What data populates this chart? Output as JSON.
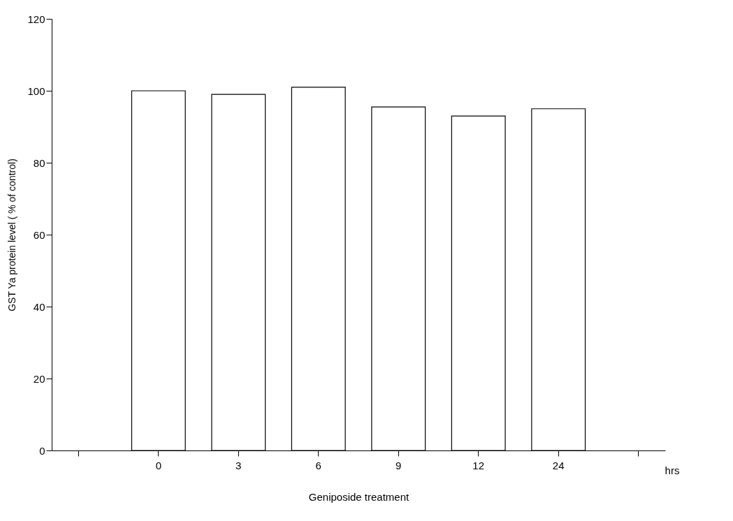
{
  "chart_data": {
    "type": "bar",
    "categories": [
      null,
      "0",
      "3",
      "6",
      "9",
      "12",
      "24",
      null
    ],
    "values": [
      null,
      100,
      99,
      101,
      95.5,
      93,
      95,
      null
    ],
    "color": "#ffffff",
    "xlabel": "Geniposide treatment",
    "ylabel": "GST Ya protein level ( % of control)",
    "ylim": [
      0,
      120
    ],
    "yticks": [
      0,
      20,
      40,
      60,
      80,
      100,
      120
    ],
    "annotations": [
      "hrs"
    ],
    "grid": false
  }
}
